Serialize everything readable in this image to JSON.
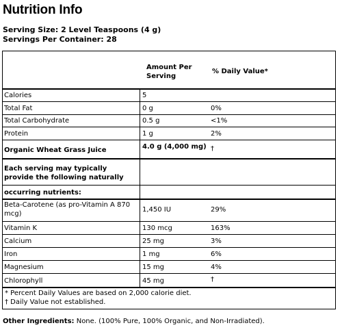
{
  "title": "Nutrition Info",
  "serving_size": "Serving Size: 2 Level Teaspoons (4 g)",
  "servings_per_container": "Servings Per Container: 28",
  "header": {
    "amount": "Amount Per Serving",
    "dv": "% Daily Value*"
  },
  "rows1": [
    {
      "name": "Calories",
      "amount": "5",
      "dv": ""
    },
    {
      "name": "Total Fat",
      "amount": "0 g",
      "dv": "0%"
    },
    {
      "name": "Total Carbohydrate",
      "amount": "0.5 g",
      "dv": "<1%"
    },
    {
      "name": "Protein",
      "amount": "1 g",
      "dv": "2%"
    }
  ],
  "organic": {
    "name": "Organic Wheat Grass Juice",
    "amount": "4.0 g (4,000 mg)",
    "dv": "†"
  },
  "provide_text": "Each serving may typically provide the following naturally",
  "occurring_text": "occurring nutrients:",
  "rows2": [
    {
      "name": "Beta-Carotene (as pro-Vitamin A 870 mcg)",
      "amount": "1,450 IU",
      "dv": "29%"
    },
    {
      "name": "Vitamin K",
      "amount": "130 mcg",
      "dv": "163%"
    },
    {
      "name": "Calcium",
      "amount": "25 mg",
      "dv": "3%"
    },
    {
      "name": "Iron",
      "amount": "1 mg",
      "dv": "6%"
    },
    {
      "name": "Magnesium",
      "amount": "15 mg",
      "dv": "4%"
    },
    {
      "name": "Chlorophyll",
      "amount": "45 mg",
      "dv": "†"
    }
  ],
  "footnotes": [
    "* Percent Daily Values are based on 2,000 calorie diet.",
    "† Daily Value not established."
  ],
  "other_ingredients": {
    "label": "Other Ingredients:",
    "text": " None.  (100% Pure, 100% Organic, and Non-Irradiated)."
  }
}
